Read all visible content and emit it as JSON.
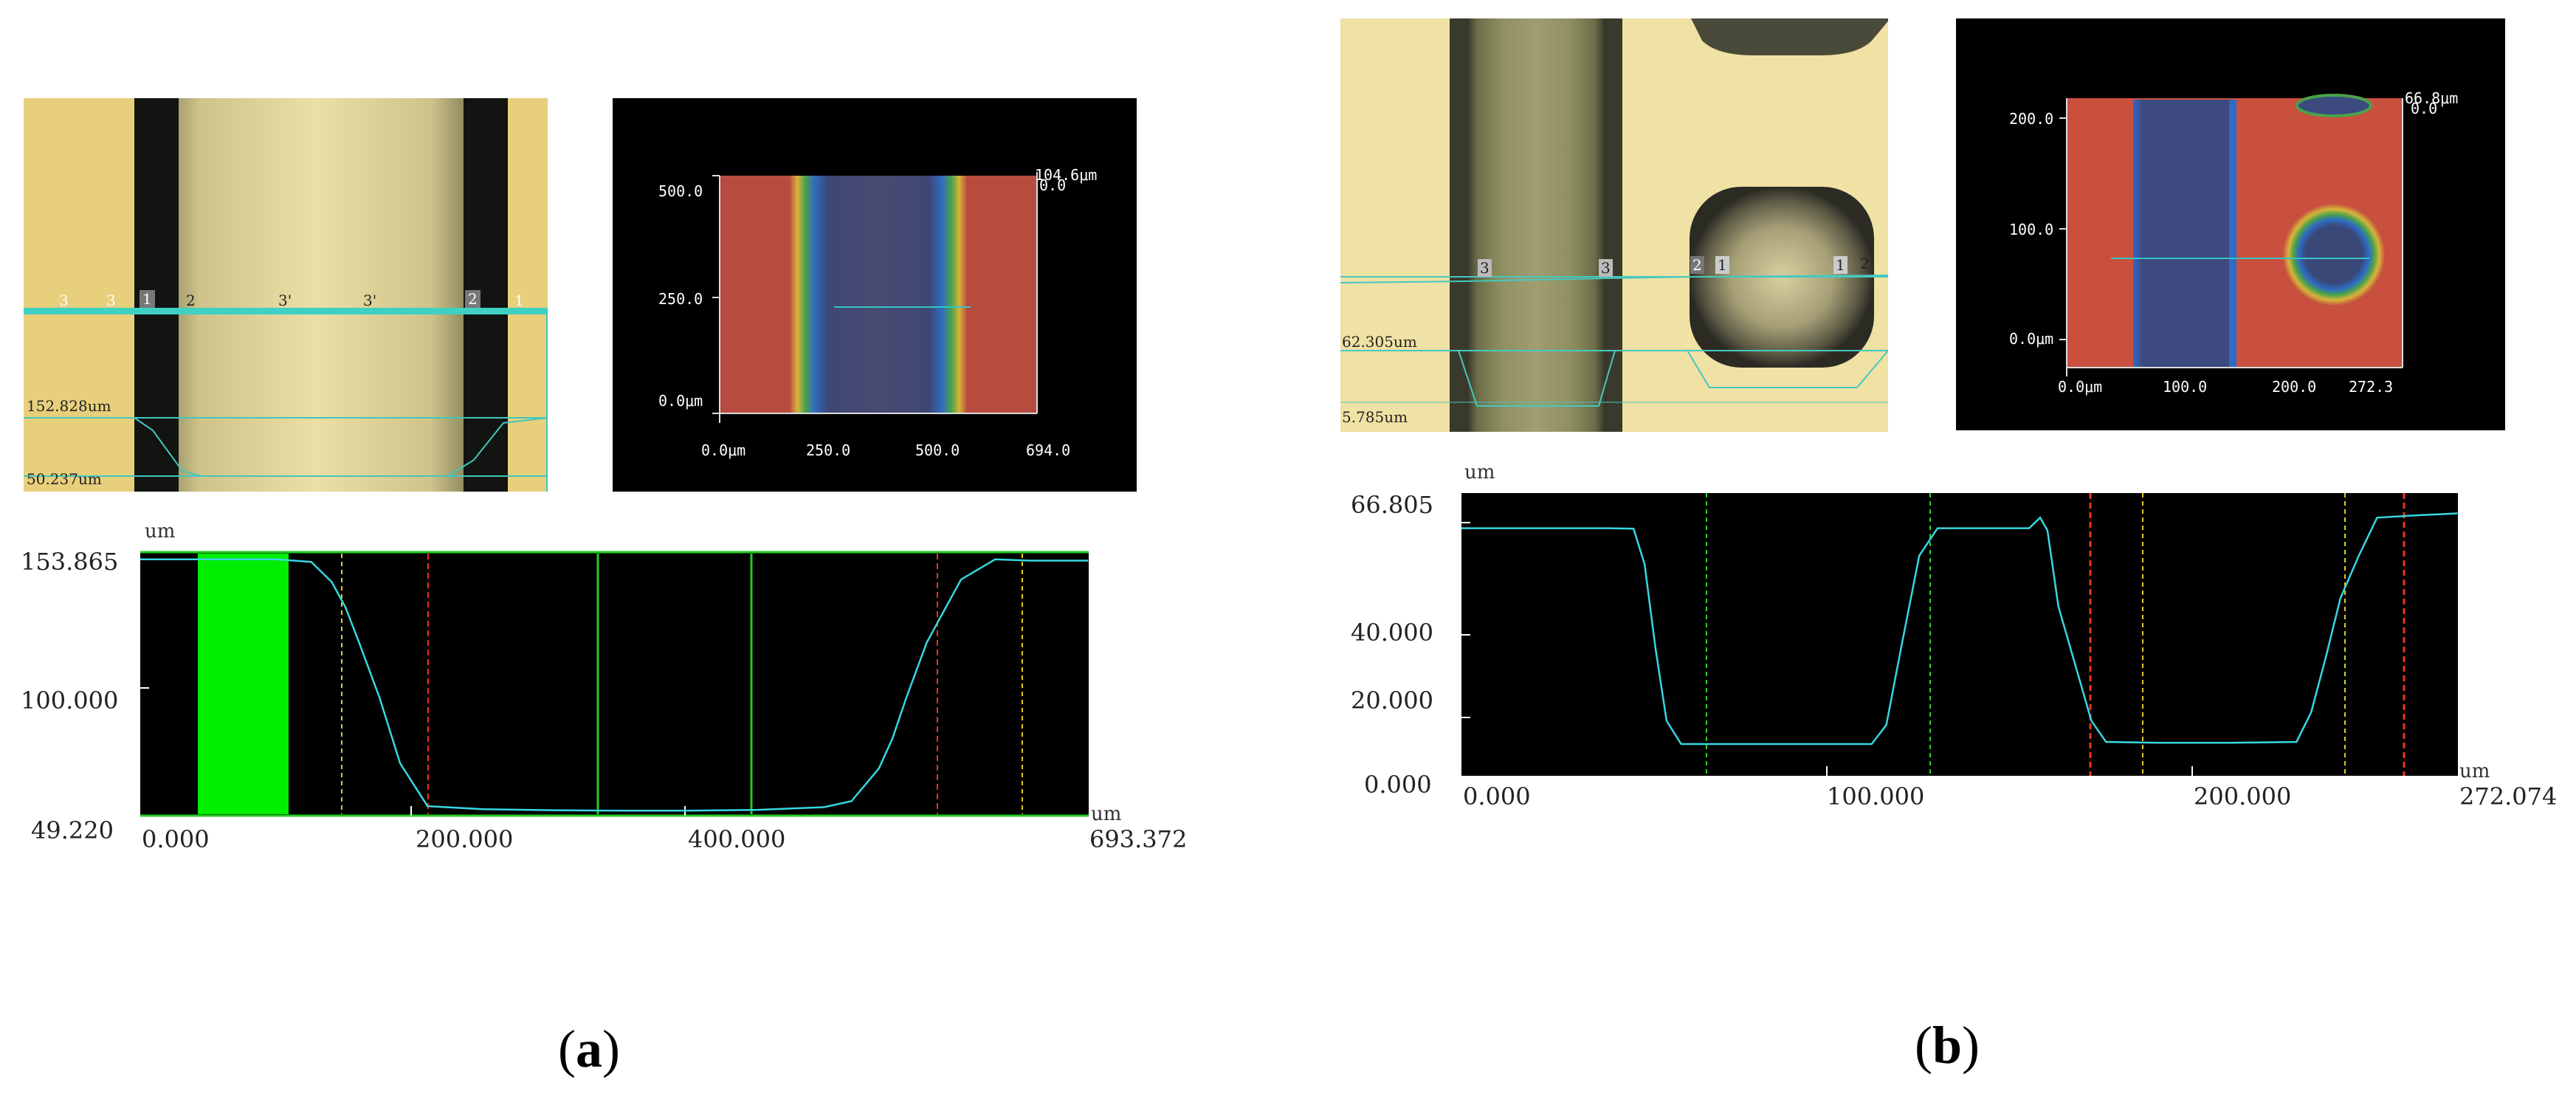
{
  "panel_a": {
    "caption_open": "(",
    "caption_letter": "a",
    "caption_close": ")",
    "micrograph": {
      "point_labels": [
        "3",
        "3",
        "1",
        "2",
        "3'",
        "3'",
        "2",
        "1"
      ],
      "value_top": "152.828um",
      "value_bottom": "50.237um"
    },
    "height_map": {
      "y_ticks": [
        "500.0",
        "250.0",
        "0.0μm"
      ],
      "x_ticks": [
        "0.0μm",
        "250.0",
        "500.0",
        "694.0"
      ],
      "scale_top": "104.6μm",
      "scale_bottom": "0.0"
    },
    "profile": {
      "unit_y": "um",
      "unit_x": "um",
      "y_labels": [
        "153.865",
        "100.000",
        "49.220"
      ],
      "x_labels": [
        "0.000",
        "200.000",
        "400.000",
        "693.372"
      ]
    }
  },
  "panel_b": {
    "caption_open": "(",
    "caption_letter": "b",
    "caption_close": ")",
    "micrograph": {
      "point_labels": [
        "3",
        "3",
        "2",
        "1",
        "1",
        "2"
      ],
      "value_top": "62.305um",
      "value_bottom": "5.785um"
    },
    "height_map": {
      "y_ticks": [
        "200.0",
        "100.0",
        "0.0μm"
      ],
      "x_ticks": [
        "0.0μm",
        "100.0",
        "200.0",
        "272.3"
      ],
      "scale_top": "66.8μm",
      "scale_bottom": "0.0"
    },
    "profile": {
      "unit_y": "um",
      "unit_x": "um",
      "y_labels": [
        "66.805",
        "40.000",
        "20.000",
        "0.000"
      ],
      "x_labels": [
        "0.000",
        "100.000",
        "200.000",
        "272.074"
      ]
    }
  },
  "chart_data": [
    {
      "type": "line",
      "title": "",
      "xlabel": "um",
      "ylabel": "um",
      "xlim": [
        0,
        693.372
      ],
      "ylim": [
        49.22,
        153.865
      ],
      "grid": false,
      "series": [
        {
          "x": [
            0,
            25,
            50,
            75,
            100,
            125,
            140,
            150,
            160,
            175,
            190,
            210,
            250,
            300,
            350,
            400,
            450,
            500,
            520,
            540,
            550,
            560,
            575,
            600,
            625,
            650,
            693
          ],
          "y": [
            151,
            151,
            151,
            151,
            151,
            150,
            142,
            132,
            118,
            96,
            70,
            53,
            51.8,
            51.4,
            51.2,
            51.2,
            51.5,
            52.6,
            55,
            68,
            80,
            96,
            118,
            143,
            151,
            150.5,
            150.5
          ]
        }
      ]
    },
    {
      "type": "line",
      "title": "",
      "xlabel": "um",
      "ylabel": "um",
      "xlim": [
        0,
        272.074
      ],
      "ylim": [
        0,
        66.805
      ],
      "grid": false,
      "series": [
        {
          "x": [
            0,
            20,
            40,
            47,
            50,
            53,
            56,
            60,
            80,
            100,
            112,
            116,
            120,
            125,
            130,
            140,
            150,
            155,
            158,
            160,
            163,
            168,
            172,
            176,
            190,
            210,
            228,
            232,
            236,
            240,
            245,
            250,
            260,
            272
          ],
          "y": [
            58.5,
            58.5,
            58.5,
            58.4,
            50,
            30,
            13,
            7.5,
            7.5,
            7.5,
            7.5,
            12,
            30,
            52,
            58.5,
            58.5,
            58.5,
            58.5,
            61,
            58,
            40,
            25,
            13,
            8,
            7.8,
            7.8,
            8,
            15,
            28,
            42,
            52,
            61,
            61.5,
            62
          ]
        }
      ]
    }
  ]
}
